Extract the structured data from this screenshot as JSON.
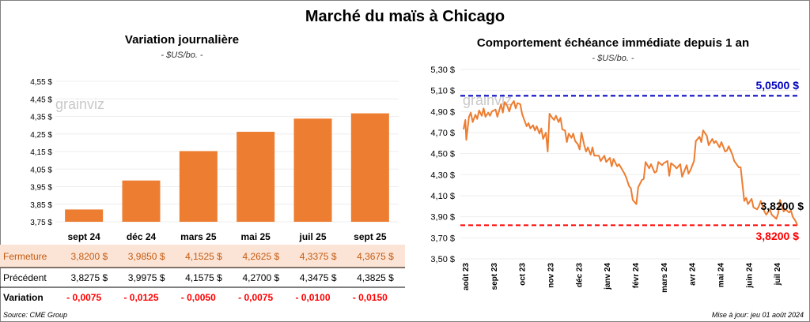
{
  "title": "Marché du maïs à Chicago",
  "left_chart": {
    "title": "Variation journalière",
    "unit": "- $US/bo. -",
    "row_labels": {
      "close": "Fermeture",
      "previous": "Précédent",
      "change": "Variation"
    },
    "previous": [
      "3,8275 $",
      "3,9975 $",
      "4,1575 $",
      "4,2700 $",
      "4,3475 $",
      "4,3825 $"
    ],
    "change": [
      "- 0,0075",
      "- 0,0125",
      "- 0,0050",
      "- 0,0075",
      "- 0,0100",
      "- 0,0150"
    ],
    "close_labels": [
      "3,8200 $",
      "3,9850 $",
      "4,1525 $",
      "4,2625 $",
      "4,3375 $",
      "4,3675 $"
    ]
  },
  "right_chart": {
    "title": "Comportement  échéance immédiate depuis 1 an",
    "unit": "- $US/bo. -",
    "high_label": "5,0500 $",
    "low_label": "3,8200 $",
    "last_label": "3,8200 $"
  },
  "watermark": "grainviz",
  "source": "Source: CME Group",
  "updated": "Mise à jour: jeu 01 août 2024",
  "colors": {
    "bar": "#ED7D31",
    "close_row": "#FBE4D5",
    "high_line": "#0000C0",
    "low_line": "#FF0000",
    "negative": "#FF0000"
  },
  "chart_data": [
    {
      "type": "bar",
      "title": "Variation journalière",
      "categories": [
        "sept 24",
        "déc 24",
        "mars 25",
        "mai 25",
        "juil 25",
        "sept 25"
      ],
      "values": [
        3.82,
        3.985,
        4.1525,
        4.2625,
        4.3375,
        4.3675
      ],
      "ylim": [
        3.75,
        4.55
      ],
      "yticks": [
        3.75,
        3.85,
        3.95,
        4.05,
        4.15,
        4.25,
        4.35,
        4.45,
        4.55
      ],
      "ytick_labels": [
        "3,75 $",
        "3,85 $",
        "3,95 $",
        "4,05 $",
        "4,15 $",
        "4,25 $",
        "4,35 $",
        "4,45 $",
        "4,55 $"
      ]
    },
    {
      "type": "line",
      "title": "Comportement  échéance immédiate depuis 1 an",
      "ylim": [
        3.5,
        5.3
      ],
      "yticks": [
        3.5,
        3.7,
        3.9,
        4.1,
        4.3,
        4.5,
        4.7,
        4.9,
        5.1,
        5.3
      ],
      "ytick_labels": [
        "3,50 $",
        "3,70 $",
        "3,90 $",
        "4,10 $",
        "4,30 $",
        "4,50 $",
        "4,70 $",
        "4,90 $",
        "5,10 $",
        "5,30 $"
      ],
      "xticks": [
        "août 23",
        "sept 23",
        "oct 23",
        "nov 23",
        "déc 23",
        "janv 24",
        "févr 24",
        "mars 24",
        "avr 24",
        "mai 24",
        "juin 24",
        "juil 24"
      ],
      "x": [
        "2023-08-01",
        "2023-08-03",
        "2023-08-04",
        "2023-08-07",
        "2023-08-09",
        "2023-08-11",
        "2023-08-14",
        "2023-08-16",
        "2023-08-18",
        "2023-08-21",
        "2023-08-23",
        "2023-08-25",
        "2023-08-28",
        "2023-08-30",
        "2023-09-01",
        "2023-09-05",
        "2023-09-07",
        "2023-09-11",
        "2023-09-13",
        "2023-09-15",
        "2023-09-18",
        "2023-09-20",
        "2023-09-22",
        "2023-09-25",
        "2023-09-27",
        "2023-09-29",
        "2023-10-02",
        "2023-10-04",
        "2023-10-06",
        "2023-10-09",
        "2023-10-11",
        "2023-10-13",
        "2023-10-16",
        "2023-10-18",
        "2023-10-20",
        "2023-10-23",
        "2023-10-25",
        "2023-10-27",
        "2023-10-30",
        "2023-11-01",
        "2023-11-03",
        "2023-11-06",
        "2023-11-08",
        "2023-11-10",
        "2023-11-13",
        "2023-11-15",
        "2023-11-17",
        "2023-11-20",
        "2023-11-22",
        "2023-11-24",
        "2023-11-27",
        "2023-11-29",
        "2023-12-01",
        "2023-12-04",
        "2023-12-06",
        "2023-12-08",
        "2023-12-11",
        "2023-12-13",
        "2023-12-15",
        "2023-12-18",
        "2023-12-20",
        "2023-12-22",
        "2023-12-27",
        "2023-12-29",
        "2024-01-02",
        "2024-01-04",
        "2024-01-08",
        "2024-01-10",
        "2024-01-12",
        "2024-01-16",
        "2024-01-18",
        "2024-01-22",
        "2024-01-24",
        "2024-01-26",
        "2024-01-29",
        "2024-01-31",
        "2024-02-02",
        "2024-02-06",
        "2024-02-08",
        "2024-02-12",
        "2024-02-14",
        "2024-02-16",
        "2024-02-20",
        "2024-02-22",
        "2024-02-26",
        "2024-02-28",
        "2024-03-01",
        "2024-03-05",
        "2024-03-07",
        "2024-03-11",
        "2024-03-13",
        "2024-03-15",
        "2024-03-19",
        "2024-03-21",
        "2024-03-25",
        "2024-03-27",
        "2024-04-01",
        "2024-04-03",
        "2024-04-05",
        "2024-04-09",
        "2024-04-11",
        "2024-04-15",
        "2024-04-17",
        "2024-04-19",
        "2024-04-23",
        "2024-04-25",
        "2024-04-29",
        "2024-05-01",
        "2024-05-03",
        "2024-05-07",
        "2024-05-09",
        "2024-05-13",
        "2024-05-15",
        "2024-05-17",
        "2024-05-21",
        "2024-05-23",
        "2024-05-28",
        "2024-05-30",
        "2024-06-03",
        "2024-06-05",
        "2024-06-07",
        "2024-06-11",
        "2024-06-13",
        "2024-06-17",
        "2024-06-19",
        "2024-06-21",
        "2024-06-25",
        "2024-06-27",
        "2024-07-01",
        "2024-07-03",
        "2024-07-08",
        "2024-07-10",
        "2024-07-12",
        "2024-07-16",
        "2024-07-18",
        "2024-07-22",
        "2024-07-24",
        "2024-07-26",
        "2024-07-29",
        "2024-07-31"
      ],
      "y": [
        4.73,
        4.82,
        4.63,
        4.85,
        4.89,
        4.8,
        4.87,
        4.83,
        4.91,
        4.86,
        4.93,
        4.85,
        4.89,
        4.86,
        4.9,
        4.92,
        4.85,
        4.97,
        4.89,
        4.99,
        4.95,
        4.9,
        4.96,
        5.0,
        4.93,
        4.98,
        4.97,
        4.88,
        4.83,
        4.76,
        4.79,
        4.74,
        4.77,
        4.72,
        4.76,
        4.69,
        4.74,
        4.64,
        4.7,
        4.52,
        4.88,
        4.84,
        4.82,
        4.86,
        4.8,
        4.84,
        4.73,
        4.72,
        4.61,
        4.69,
        4.65,
        4.69,
        4.62,
        4.59,
        4.54,
        4.7,
        4.58,
        4.52,
        4.56,
        4.49,
        4.56,
        4.48,
        4.48,
        4.43,
        4.48,
        4.42,
        4.46,
        4.38,
        4.45,
        4.38,
        4.4,
        4.34,
        4.31,
        4.27,
        4.19,
        4.17,
        4.06,
        4.02,
        4.18,
        4.25,
        4.26,
        4.42,
        4.36,
        4.4,
        4.32,
        4.33,
        4.42,
        4.39,
        4.41,
        4.43,
        4.29,
        4.41,
        4.38,
        4.36,
        4.4,
        4.28,
        4.39,
        4.31,
        4.34,
        4.43,
        4.62,
        4.66,
        4.61,
        4.72,
        4.67,
        4.58,
        4.64,
        4.6,
        4.62,
        4.56,
        4.61,
        4.52,
        4.53,
        4.57,
        4.49,
        4.43,
        4.37,
        4.37,
        4.05,
        4.08,
        4.02,
        4.07,
        3.99,
        3.97,
        4.0,
        4.05,
        3.95,
        3.92,
        3.97,
        3.92,
        3.88,
        3.93,
        4.06,
        3.95,
        3.97,
        3.94,
        3.96,
        3.9,
        3.86,
        3.82
      ],
      "hlines": [
        {
          "value": 5.05,
          "label": "5,0500 $",
          "color": "#0000C0"
        },
        {
          "value": 3.82,
          "label": "3,8200 $",
          "color": "#FF0000"
        }
      ],
      "last_value_label": "3,8200 $"
    }
  ]
}
